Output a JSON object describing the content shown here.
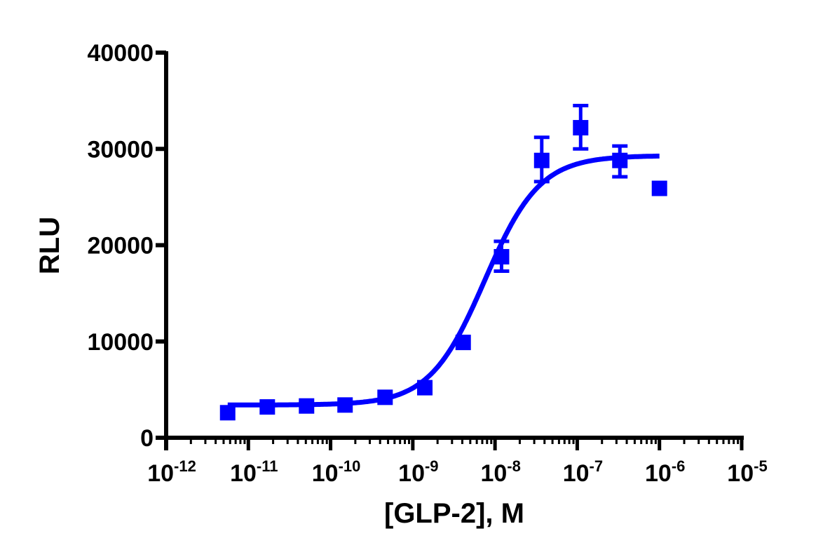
{
  "chart_data": {
    "type": "scatter",
    "title": "",
    "xlabel": "[GLP-2], M",
    "ylabel": "RLU",
    "xscale": "log",
    "xlim": [
      1e-12,
      1e-05
    ],
    "ylim": [
      0,
      40000
    ],
    "grid": false,
    "legend": null,
    "x_ticks": [
      {
        "base": "10",
        "exp": "-12",
        "value": 1e-12
      },
      {
        "base": "10",
        "exp": "-11",
        "value": 1e-11
      },
      {
        "base": "10",
        "exp": "-10",
        "value": 1e-10
      },
      {
        "base": "10",
        "exp": "-9",
        "value": 1e-09
      },
      {
        "base": "10",
        "exp": "-8",
        "value": 1e-08
      },
      {
        "base": "10",
        "exp": "-7",
        "value": 1e-07
      },
      {
        "base": "10",
        "exp": "-6",
        "value": 1e-06
      },
      {
        "base": "10",
        "exp": "-5",
        "value": 1e-05
      }
    ],
    "y_ticks": [
      "0",
      "10000",
      "20000",
      "30000",
      "40000"
    ],
    "y_tick_values": [
      0,
      10000,
      20000,
      30000,
      40000
    ],
    "series": [
      {
        "name": "GLP-2",
        "color": "#0000ff",
        "marker": "square",
        "x": [
          5.6e-12,
          1.7e-11,
          5.1e-11,
          1.5e-10,
          4.6e-10,
          1.4e-09,
          4.1e-09,
          1.2e-08,
          3.7e-08,
          1.1e-07,
          3.3e-07,
          1e-06
        ],
        "y": [
          2600,
          3200,
          3300,
          3400,
          4200,
          5200,
          9900,
          18800,
          28800,
          32200,
          28800,
          25900
        ],
        "y_err_low": [
          0,
          0,
          0,
          0,
          0,
          0,
          0,
          17300,
          26600,
          30000,
          27100,
          0
        ],
        "y_err_high": [
          0,
          0,
          0,
          0,
          0,
          0,
          0,
          20400,
          31200,
          34500,
          30300,
          0
        ]
      }
    ],
    "fit": {
      "type": "sigmoidal dose-response",
      "color": "#0000ff",
      "bottom": 3400,
      "top": 29300,
      "ec50": 7.5e-09,
      "hill": 1.3,
      "x_range": [
        5.6e-12,
        1e-06
      ]
    }
  }
}
